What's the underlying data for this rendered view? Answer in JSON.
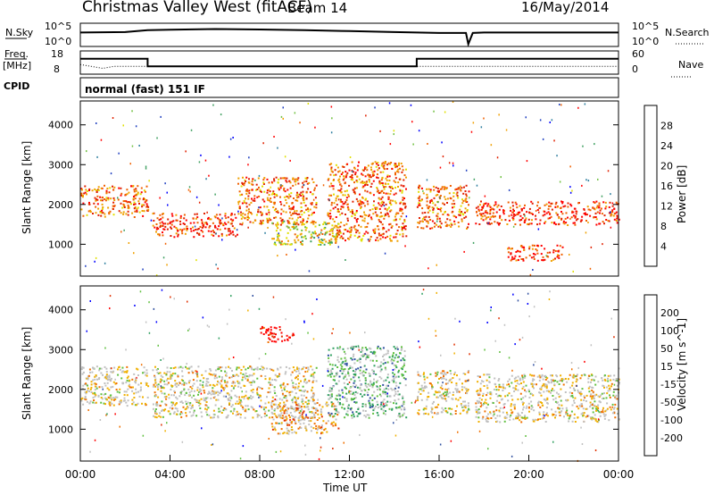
{
  "header": {
    "station": "Christmas Valley West (fitACF)",
    "beam": "Beam 14",
    "date": "16/May/2014"
  },
  "left_labels": {
    "nsky": "N.Sky",
    "freq": "Freq.",
    "freq_unit": "[MHz]",
    "cpid": "CPID"
  },
  "right_labels": {
    "nsearch": "N.Search",
    "nave": "Nave"
  },
  "cpid_text": "normal (fast) 151 IF",
  "colors": {
    "power": [
      "#0000ff",
      "#2040c0",
      "#2f7f9f",
      "#3fa060",
      "#70c040",
      "#e0e000",
      "#f0a000",
      "#f06000",
      "#e02000",
      "#ff0000"
    ],
    "velocity": [
      "#ff0000",
      "#e03000",
      "#f07000",
      "#f0b000",
      "#c0c0c0",
      "#c0c0c0",
      "#60c040",
      "#30a060",
      "#3050a0",
      "#0000ff"
    ]
  },
  "chart_data": [
    {
      "type": "line",
      "panel": "noise",
      "left_ticks": [
        "10^5",
        "10^0"
      ],
      "right_ticks": [
        "10^5",
        "10^0"
      ],
      "series": [
        {
          "name": "N.Sky",
          "x": [
            0,
            2,
            3,
            4,
            6,
            8,
            10,
            12,
            14,
            16,
            17.2,
            17.3,
            17.5,
            18,
            20,
            24
          ],
          "y": [
            0.6,
            0.62,
            0.7,
            0.72,
            0.75,
            0.73,
            0.7,
            0.66,
            0.62,
            0.58,
            0.58,
            0.1,
            0.58,
            0.6,
            0.6,
            0.6
          ]
        }
      ]
    },
    {
      "type": "line",
      "panel": "frequency",
      "left_ticks": [
        "18",
        "8"
      ],
      "right_ticks": [
        "60",
        "0"
      ],
      "series": [
        {
          "name": "Freq.",
          "x": [
            0,
            3,
            3,
            15,
            15,
            24
          ],
          "y": [
            14,
            14,
            10,
            10,
            14,
            14
          ]
        },
        {
          "name": "Nave",
          "x": [
            0,
            1,
            1.5,
            3,
            24
          ],
          "y": [
            11,
            9,
            10,
            10,
            10
          ]
        }
      ]
    },
    {
      "type": "heatmap",
      "panel": "power",
      "ylabel": "Slant Range [km]",
      "yticks": [
        1000,
        2000,
        3000,
        4000
      ],
      "ylim": [
        200,
        4600
      ],
      "xlim": [
        0,
        24
      ],
      "colorbar_label": "Power [dB]",
      "colorbar_ticks": [
        "4",
        "8",
        "12",
        "16",
        "20",
        "24",
        "28"
      ],
      "regions": [
        {
          "x0": 0,
          "x1": 3,
          "r0": 1700,
          "r1": 2500,
          "level": 7
        },
        {
          "x0": 3.2,
          "x1": 7,
          "r0": 1200,
          "r1": 1800,
          "level": 8
        },
        {
          "x0": 7,
          "x1": 10.5,
          "r0": 1500,
          "r1": 2700,
          "level": 7
        },
        {
          "x0": 8.5,
          "x1": 11.5,
          "r0": 1000,
          "r1": 1600,
          "level": 5
        },
        {
          "x0": 11,
          "x1": 14.5,
          "r0": 1100,
          "r1": 3100,
          "level": 7
        },
        {
          "x0": 15,
          "x1": 17.3,
          "r0": 1400,
          "r1": 2500,
          "level": 7
        },
        {
          "x0": 17.6,
          "x1": 24,
          "r0": 1500,
          "r1": 2100,
          "level": 8
        },
        {
          "x0": 19,
          "x1": 21.5,
          "r0": 600,
          "r1": 1000,
          "level": 8
        }
      ]
    },
    {
      "type": "heatmap",
      "panel": "velocity",
      "ylabel": "Slant Range [km]",
      "xlabel": "Time UT",
      "yticks": [
        1000,
        2000,
        3000,
        4000
      ],
      "ylim": [
        200,
        4600
      ],
      "xlim": [
        0,
        24
      ],
      "xticks": [
        "00:00",
        "04:00",
        "08:00",
        "12:00",
        "16:00",
        "20:00",
        "00:00"
      ],
      "colorbar_label": "Velocity [m s^-1]",
      "colorbar_ticks": [
        "200",
        "100",
        "50",
        "15",
        "-15",
        "-50",
        "-100",
        "-200"
      ],
      "regions": [
        {
          "x0": 0,
          "x1": 3,
          "r0": 1600,
          "r1": 2600,
          "level": 4
        },
        {
          "x0": 3.2,
          "x1": 10.5,
          "r0": 1300,
          "r1": 2600,
          "level": 4
        },
        {
          "x0": 8.5,
          "x1": 11.5,
          "r0": 900,
          "r1": 1700,
          "level": 3
        },
        {
          "x0": 11,
          "x1": 14.5,
          "r0": 1300,
          "r1": 3100,
          "level": 6
        },
        {
          "x0": 15,
          "x1": 17.3,
          "r0": 1400,
          "r1": 2500,
          "level": 4
        },
        {
          "x0": 17.6,
          "x1": 24,
          "r0": 1200,
          "r1": 2400,
          "level": 4
        },
        {
          "x0": 8,
          "x1": 9.5,
          "r0": 3200,
          "r1": 3600,
          "level": 0
        }
      ]
    }
  ]
}
